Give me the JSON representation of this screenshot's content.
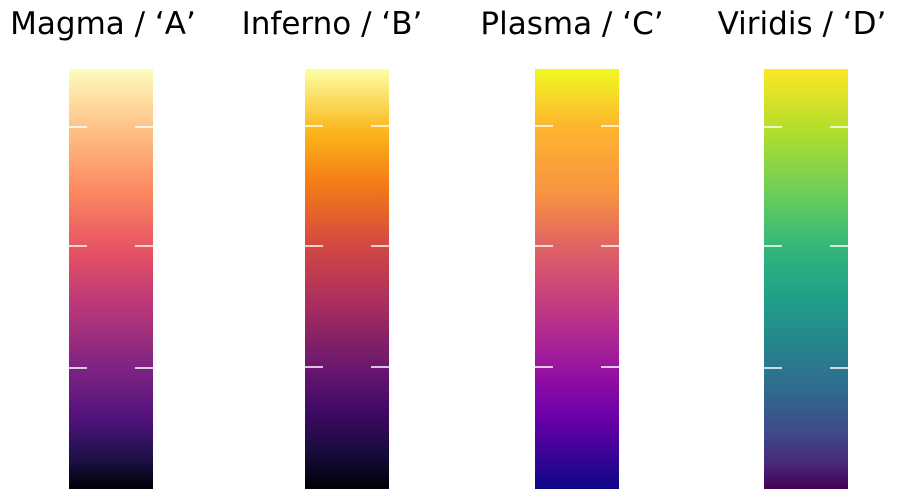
{
  "palettes": [
    {
      "id": "A",
      "title": "Magma / ‘A’"
    },
    {
      "id": "B",
      "title": "Inferno / ‘B’"
    },
    {
      "id": "C",
      "title": "Plasma / ‘C’"
    },
    {
      "id": "D",
      "title": "Viridis / ‘D’"
    }
  ],
  "colors": {
    "magma": [
      "#fcfdbf",
      "#fec287",
      "#fc8961",
      "#e75263",
      "#b73779",
      "#7e2482",
      "#51127c",
      "#1d1147",
      "#000004"
    ],
    "inferno": [
      "#fcffa4",
      "#fbb61a",
      "#f57d15",
      "#d44842",
      "#a52c60",
      "#6a176e",
      "#420a68",
      "#160b39",
      "#000004"
    ],
    "plasma": [
      "#f0f921",
      "#fdb42f",
      "#f89540",
      "#e16462",
      "#cc4778",
      "#b12a90",
      "#8f0da4",
      "#6a00a8",
      "#0d0887"
    ],
    "viridis": [
      "#fde725",
      "#b5de2b",
      "#6ece58",
      "#35b779",
      "#1f9e89",
      "#26828e",
      "#31688e",
      "#3e4989",
      "#482878",
      "#440154"
    ]
  }
}
